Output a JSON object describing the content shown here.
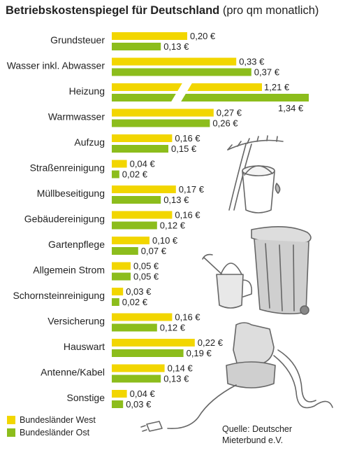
{
  "header": {
    "title": "Betriebskostenspiegel für Deutschland",
    "subtitle": "(pro qm monatlich)"
  },
  "chart_data": {
    "type": "bar",
    "orientation": "horizontal",
    "categories": [
      "Grundsteuer",
      "Wasser inkl. Abwasser",
      "Heizung",
      "Warmwasser",
      "Aufzug",
      "Straßenreinigung",
      "Müllbeseitigung",
      "Gebäudereinigung",
      "Gartenpflege",
      "Allgemein Strom",
      "Schornsteinreinigung",
      "Versicherung",
      "Hauswart",
      "Antenne/Kabel",
      "Sonstige"
    ],
    "series": [
      {
        "name": "Bundesländer West",
        "color": "#f2d600",
        "values": [
          0.2,
          0.33,
          1.21,
          0.27,
          0.16,
          0.04,
          0.17,
          0.16,
          0.1,
          0.05,
          0.03,
          0.16,
          0.22,
          0.14,
          0.04
        ],
        "labels": [
          "0,20 €",
          "0,33 €",
          "1,21 €",
          "0,27 €",
          "0,16 €",
          "0,04 €",
          "0,17 €",
          "0,16 €",
          "0,10 €",
          "0,05 €",
          "0,03 €",
          "0,16 €",
          "0,22 €",
          "0,14 €",
          "0,04 €"
        ]
      },
      {
        "name": "Bundesländer Ost",
        "color": "#8cbd1c",
        "values": [
          0.13,
          0.37,
          1.34,
          0.26,
          0.15,
          0.02,
          0.13,
          0.12,
          0.07,
          0.05,
          0.02,
          0.12,
          0.19,
          0.13,
          0.03
        ],
        "labels": [
          "0,13 €",
          "0,37 €",
          "1,34 €",
          "0,26 €",
          "0,15 €",
          "0,02 €",
          "0,13 €",
          "0,12 €",
          "0,07 €",
          "0,05 €",
          "0,02 €",
          "0,12 €",
          "0,19 €",
          "0,13 €",
          "0,03 €"
        ]
      }
    ],
    "axis_break": {
      "category": "Heizung"
    },
    "grid": false,
    "legend_position": "bottom-left"
  },
  "legend": {
    "items": [
      {
        "label": "Bundesländer West",
        "color": "#f2d600"
      },
      {
        "label": "Bundesländer Ost",
        "color": "#8cbd1c"
      }
    ]
  },
  "source": {
    "line1": "Quelle: Deutscher",
    "line2": "Mieterbund e.V."
  }
}
